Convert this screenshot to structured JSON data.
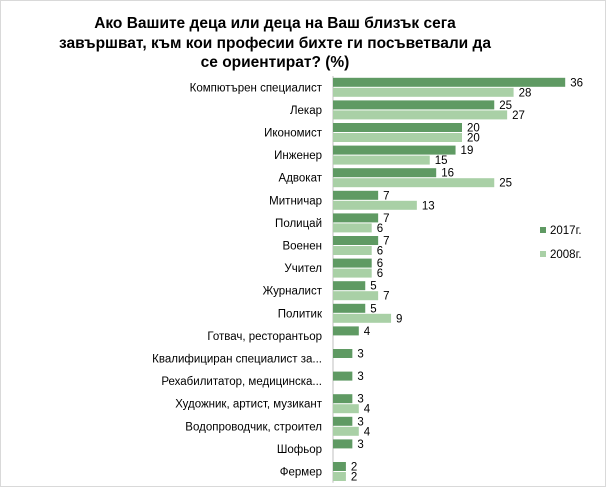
{
  "chart_data": {
    "type": "bar",
    "orientation": "horizontal",
    "title_lines": [
      "Ако Вашите деца или деца на Ваш близък сега",
      "завършват, към кои професии бихте ги посъветвали да",
      "се ориентират? (%)"
    ],
    "categories": [
      "Компютърен специалист",
      "Лекар",
      "Икономист",
      "Инженер",
      "Адвокат",
      "Митничар",
      "Полицай",
      "Военен",
      "Учител",
      "Журналист",
      "Политик",
      "Готвач, ресторантьор",
      "Квалифициран специалист за...",
      "Рехабилитатор, медицинска...",
      "Художник, артист, музикант",
      "Водопроводчик, строител",
      "Шофьор",
      "Фермер"
    ],
    "series": [
      {
        "name": "2017г.",
        "color": "#5f9a63",
        "values": [
          36,
          25,
          20,
          19,
          16,
          7,
          7,
          7,
          6,
          5,
          5,
          4,
          3,
          3,
          3,
          3,
          3,
          2
        ]
      },
      {
        "name": "2008г.",
        "color": "#a9d0a6",
        "values": [
          28,
          27,
          20,
          15,
          25,
          13,
          6,
          6,
          6,
          7,
          9,
          null,
          null,
          null,
          4,
          4,
          null,
          2
        ]
      }
    ],
    "xlim": [
      0,
      40
    ],
    "grid": false,
    "legend_position": "right"
  }
}
